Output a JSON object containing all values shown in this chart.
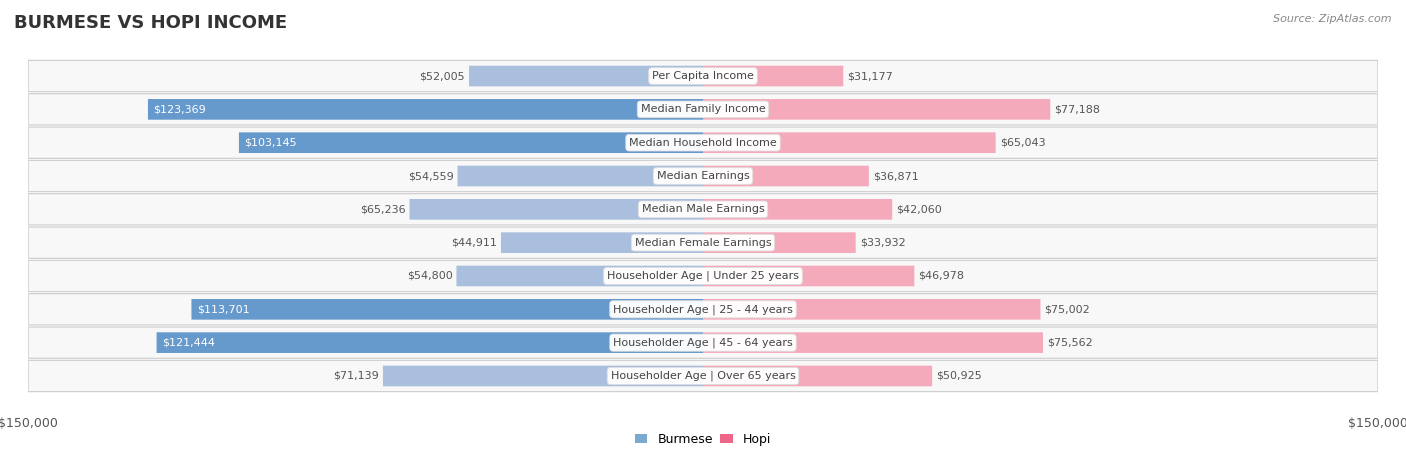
{
  "title": "BURMESE VS HOPI INCOME",
  "source": "Source: ZipAtlas.com",
  "categories": [
    "Per Capita Income",
    "Median Family Income",
    "Median Household Income",
    "Median Earnings",
    "Median Male Earnings",
    "Median Female Earnings",
    "Householder Age | Under 25 years",
    "Householder Age | 25 - 44 years",
    "Householder Age | 45 - 64 years",
    "Householder Age | Over 65 years"
  ],
  "burmese_values": [
    52005,
    123369,
    103145,
    54559,
    65236,
    44911,
    54800,
    113701,
    121444,
    71139
  ],
  "hopi_values": [
    31177,
    77188,
    65043,
    36871,
    42060,
    33932,
    46978,
    75002,
    75562,
    50925
  ],
  "burmese_labels": [
    "$52,005",
    "$123,369",
    "$103,145",
    "$54,559",
    "$65,236",
    "$44,911",
    "$54,800",
    "$113,701",
    "$121,444",
    "$71,139"
  ],
  "hopi_labels": [
    "$31,177",
    "$77,188",
    "$65,043",
    "$36,871",
    "$42,060",
    "$33,932",
    "$46,978",
    "$75,002",
    "$75,562",
    "$50,925"
  ],
  "max_value": 150000,
  "burmese_bar_color_large": "#6699CC",
  "burmese_bar_color_small": "#AABFDD",
  "hopi_bar_color_large": "#EE6688",
  "hopi_bar_color_small": "#F5AABB",
  "legend_burmese_color": "#7AAAD0",
  "legend_hopi_color": "#EE6688",
  "background_color": "#ffffff",
  "row_bg_color": "#f5f5f5",
  "title_color": "#333333",
  "source_color": "#888888",
  "label_outside_color": "#555555",
  "label_inside_color": "#ffffff",
  "threshold_large": 80000,
  "cat_label_fontsize": 8,
  "val_label_fontsize": 8,
  "title_fontsize": 13,
  "source_fontsize": 8
}
